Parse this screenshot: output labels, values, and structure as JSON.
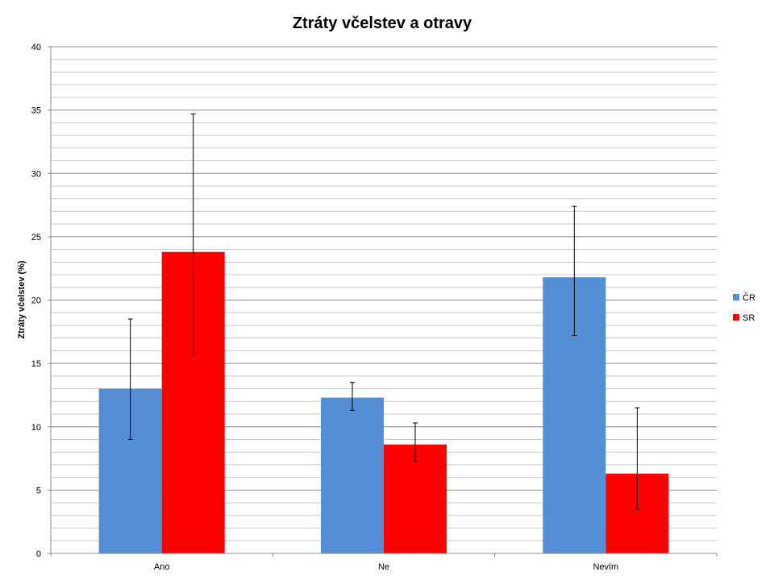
{
  "chart_data": {
    "type": "bar",
    "title": "Ztráty včelstev a otravy",
    "xlabel": "",
    "ylabel": "Ztráty včelstev (%)",
    "categories": [
      "Ano",
      "Ne",
      "Nevím"
    ],
    "series": [
      {
        "name": "ČR",
        "color": "#558ED5",
        "values": [
          13.0,
          12.3,
          21.8
        ],
        "error_low": [
          9.0,
          11.3,
          17.2
        ],
        "error_high": [
          18.5,
          13.5,
          27.4
        ]
      },
      {
        "name": "SR",
        "color": "#FF0000",
        "values": [
          23.8,
          8.6,
          6.3
        ],
        "error_low": [
          15.6,
          7.2,
          3.5
        ],
        "error_high": [
          34.7,
          10.3,
          11.5
        ]
      }
    ],
    "ylim": [
      0,
      40
    ],
    "yticks": [
      0,
      5,
      10,
      15,
      20,
      25,
      30,
      35,
      40
    ],
    "minor_grid_step": 1,
    "grid": true,
    "legend_position": "right"
  }
}
